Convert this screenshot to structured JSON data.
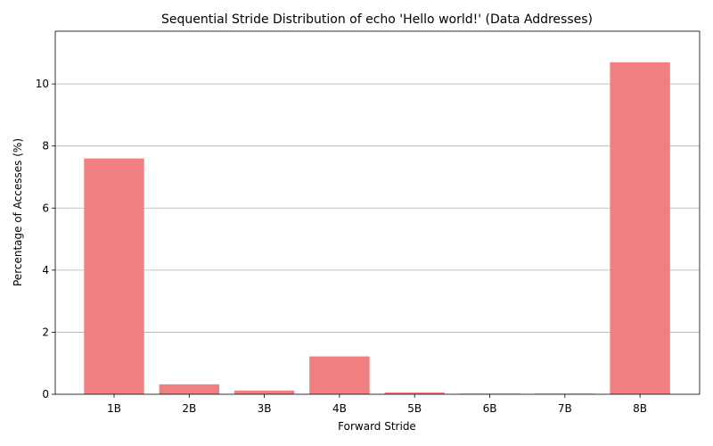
{
  "chart_data": {
    "type": "bar",
    "title": "Sequential Stride Distribution of echo 'Hello world!' (Data Addresses)",
    "xlabel": "Forward Stride",
    "ylabel": "Percentage of Accesses (%)",
    "categories": [
      "1B",
      "2B",
      "3B",
      "4B",
      "5B",
      "6B",
      "7B",
      "8B"
    ],
    "values": [
      7.6,
      0.32,
      0.12,
      1.22,
      0.06,
      0.02,
      0.02,
      10.7
    ],
    "ylim": [
      0,
      11.7
    ],
    "yticks": [
      0,
      2,
      4,
      6,
      8,
      10
    ],
    "grid": "y-major",
    "bar_color": "#f08080"
  }
}
